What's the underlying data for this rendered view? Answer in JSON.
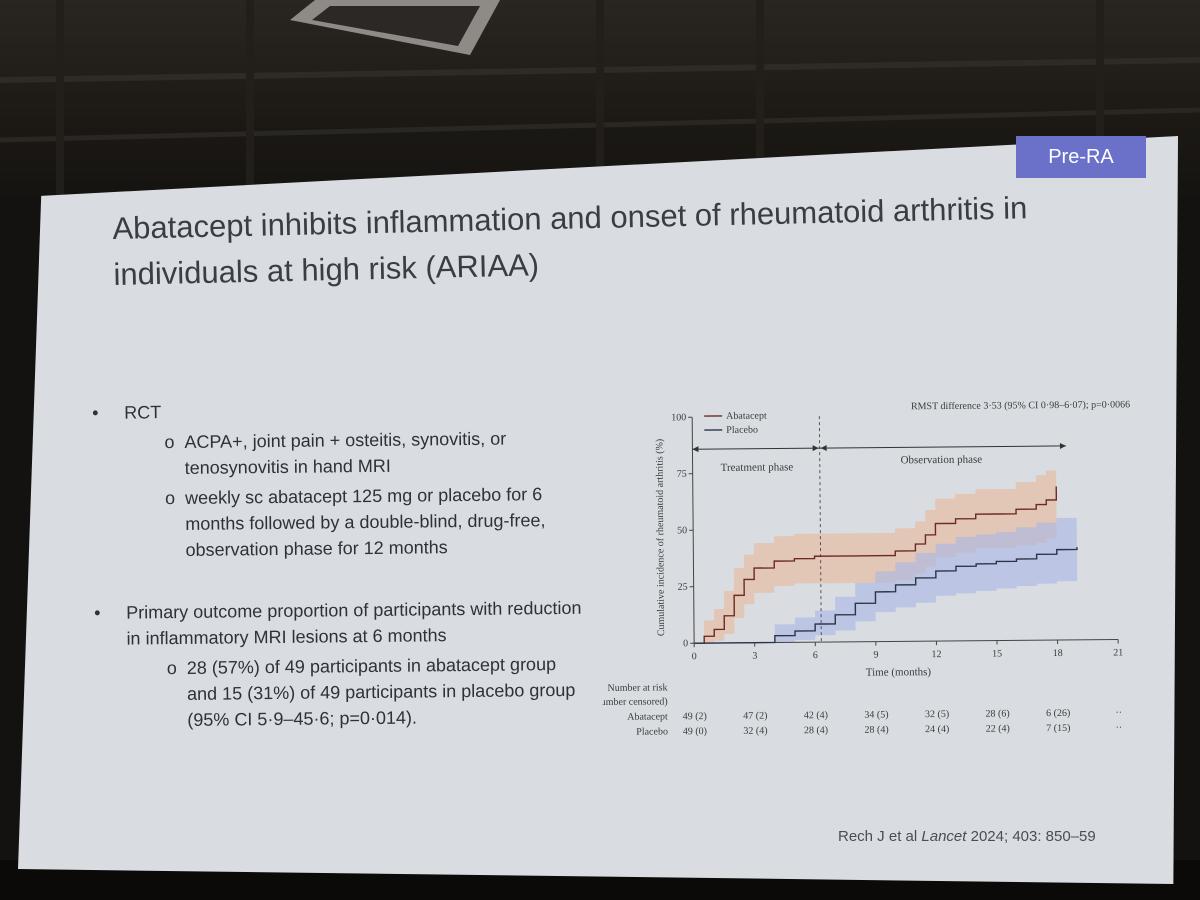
{
  "badge": "Pre-RA",
  "title": {
    "line1": "Abatacept inhibits inflammation and onset of rheumatoid arthritis in",
    "line2": "individuals at high risk (ARIAA)"
  },
  "bullets": [
    {
      "text": "RCT",
      "subs": [
        "ACPA+, joint pain + osteitis, synovitis, or tenosynovitis in hand MRI",
        "weekly sc abatacept 125 mg or placebo for 6 months followed by a double-blind, drug-free, observation phase for 12 months"
      ]
    },
    {
      "text": "Primary outcome proportion of participants with reduction in inflammatory MRI lesions at 6 months",
      "subs": [
        "28 (57%) of 49 participants in abatacept group and 15 (31%) of 49 participants in placebo group (95% CI 5·9–45·6; p=0·014)."
      ]
    }
  ],
  "citation": {
    "authors": "Rech J et al",
    "journal": "Lancet",
    "details": "2024; 403: 850–59"
  },
  "colors": {
    "badge": "#6b71c9",
    "abatacept_line": "#6e2a22",
    "abatacept_band": "#e8b899",
    "placebo_line": "#2a3447",
    "placebo_band": "#a9b7e6"
  },
  "chart_data": {
    "type": "line",
    "ylabel": "Cumulative incidence of rheumatoid arthritis (%)",
    "xlabel": "Time (months)",
    "xlim": [
      0,
      21
    ],
    "ylim": [
      0,
      100
    ],
    "x_ticks": [
      "0",
      "3",
      "6",
      "9",
      "12",
      "15",
      "18",
      "21"
    ],
    "y_ticks": [
      "0",
      "25",
      "50",
      "75",
      "100"
    ],
    "annotation": "RMST difference 3·53 (95% CI 0·98–6·07); p=0·0066",
    "phases": [
      {
        "label": "Treatment phase",
        "x_start": 0,
        "x_end": 6.3
      },
      {
        "label": "Observation phase",
        "x_start": 6.3,
        "x_end": 18.5
      }
    ],
    "series": [
      {
        "name": "Abatacept",
        "x": [
          0,
          0.5,
          1,
          1.5,
          2,
          2.5,
          3,
          4,
          5,
          6,
          7,
          8,
          9,
          10,
          11,
          11.5,
          12,
          13,
          14,
          15,
          16,
          17,
          17.5,
          18
        ],
        "y": [
          0,
          3,
          6,
          12,
          21,
          28,
          33,
          36,
          37,
          38,
          38,
          38,
          38,
          40,
          43,
          47,
          52,
          54,
          56,
          56,
          58,
          60,
          62,
          68
        ],
        "band_low": [
          0,
          0,
          1,
          4,
          11,
          17,
          22,
          25,
          26,
          26,
          26,
          26,
          26,
          27,
          30,
          33,
          37,
          39,
          41,
          41,
          42,
          43,
          45,
          48
        ],
        "band_high": [
          0,
          10,
          15,
          23,
          33,
          39,
          44,
          47,
          48,
          48,
          48,
          48,
          48,
          50,
          53,
          58,
          63,
          65,
          67,
          67,
          70,
          73,
          75,
          83
        ]
      },
      {
        "name": "Placebo",
        "x": [
          0,
          3,
          4,
          5,
          6,
          6.3,
          7,
          8,
          9,
          10,
          11,
          12,
          13,
          14,
          15,
          16,
          17,
          18,
          19
        ],
        "y": [
          0,
          0,
          3,
          5,
          8,
          8,
          12,
          17,
          22,
          25,
          28,
          31,
          33,
          34,
          35,
          36,
          38,
          40,
          41
        ],
        "band_low": [
          0,
          0,
          0,
          1,
          3,
          3,
          5,
          9,
          13,
          15,
          17,
          20,
          21,
          22,
          23,
          24,
          25,
          26,
          27
        ],
        "band_high": [
          0,
          0,
          8,
          11,
          14,
          14,
          20,
          26,
          31,
          35,
          39,
          43,
          46,
          47,
          48,
          50,
          52,
          54,
          55
        ]
      }
    ],
    "risk_table": {
      "header": [
        "Number at risk",
        "(number censored)"
      ],
      "rows": [
        {
          "label": "Abatacept",
          "values": [
            "49 (2)",
            "47 (2)",
            "42 (4)",
            "34 (5)",
            "32 (5)",
            "28 (6)",
            "6 (26)",
            "··"
          ]
        },
        {
          "label": "Placebo",
          "values": [
            "49 (0)",
            "32 (4)",
            "28 (4)",
            "28 (4)",
            "24 (4)",
            "22 (4)",
            "7 (15)",
            "··"
          ]
        }
      ]
    }
  }
}
